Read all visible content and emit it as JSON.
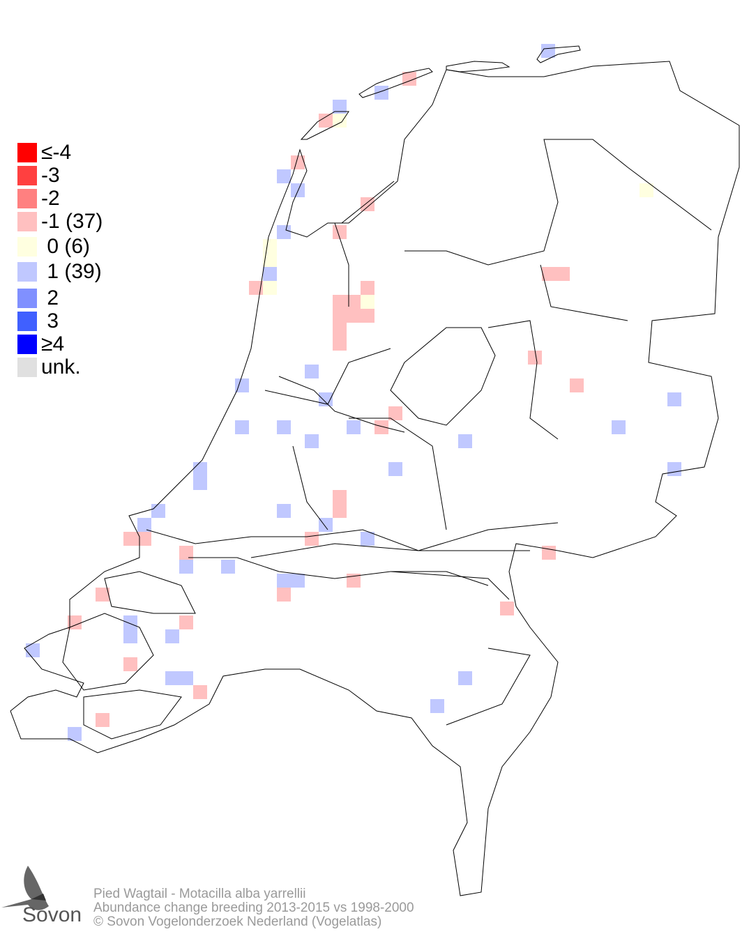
{
  "legend": [
    {
      "label": "≤-4",
      "color": "#ff0000"
    },
    {
      "label": "-3",
      "color": "#ff4040"
    },
    {
      "label": "-2",
      "color": "#ff8080"
    },
    {
      "label": "-1 (37)",
      "color": "#ffc0c0"
    },
    {
      "label": " 0 (6)",
      "color": "#ffffe0"
    },
    {
      "label": " 1 (39)",
      "color": "#c0c8ff"
    },
    {
      "label": " 2",
      "color": "#8090ff"
    },
    {
      "label": " 3",
      "color": "#4060ff"
    },
    {
      "label": "≥4",
      "color": "#0000ff"
    },
    {
      "label": "unk.",
      "color": "#e0e0e0"
    }
  ],
  "caption": {
    "line1": "Pied Wagtail - Motacilla alba yarrellii",
    "line2": "Abundance change breeding  2013-2015 vs 1998-2000",
    "line3": "© Sovon Vogelonderzoek Nederland (Vogelatlas)"
  },
  "logo": {
    "text": "Sovon",
    "icon": "swallow-icon"
  }
}
